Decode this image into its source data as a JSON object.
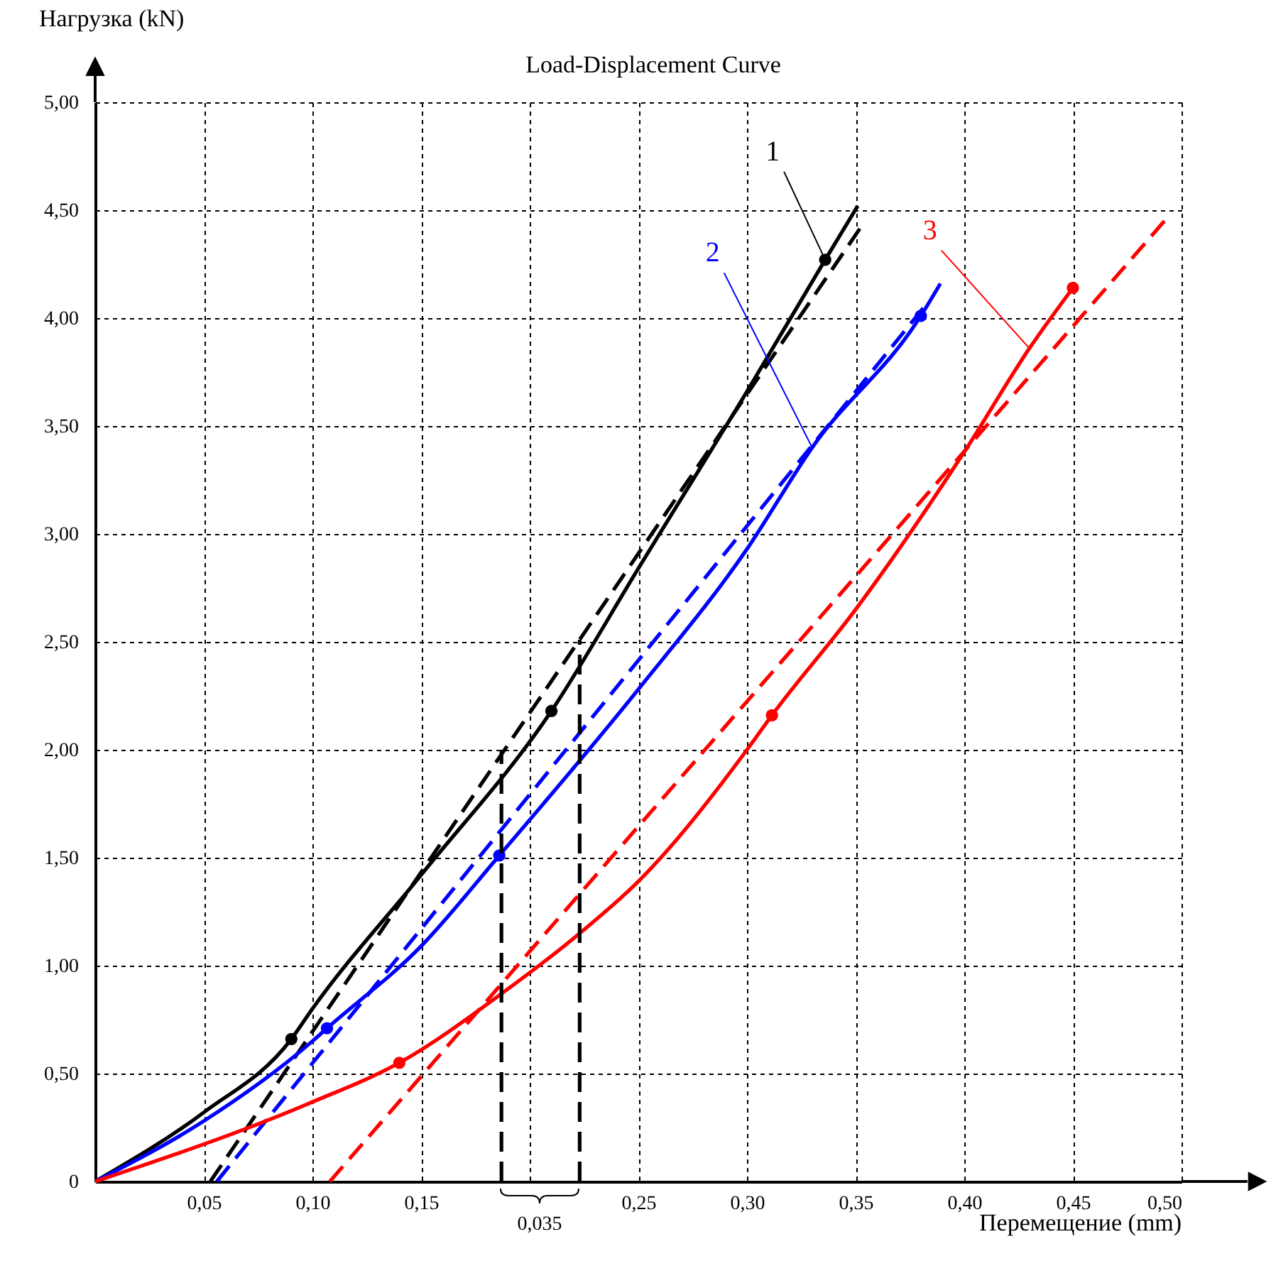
{
  "chart_data": {
    "type": "line",
    "title": "Load-Displacement Curve",
    "xlabel": "Перемещение (mm)",
    "ylabel": "Нагрузка (kN)",
    "xlim": [
      0,
      0.5
    ],
    "ylim": [
      0,
      5
    ],
    "xticks": [
      {
        "value": 0.05,
        "label": "0,05"
      },
      {
        "value": 0.1,
        "label": "0,10"
      },
      {
        "value": 0.15,
        "label": "0,15"
      },
      {
        "value": 0.2,
        "label": null
      },
      {
        "value": 0.25,
        "label": "0,25"
      },
      {
        "value": 0.3,
        "label": "0,30"
      },
      {
        "value": 0.35,
        "label": "0,35"
      },
      {
        "value": 0.4,
        "label": "0,40"
      },
      {
        "value": 0.45,
        "label": "0,45"
      },
      {
        "value": 0.5,
        "label": "0,50"
      }
    ],
    "yticks": [
      0,
      {
        "value": 0.5,
        "label": "0,50"
      },
      {
        "value": 1,
        "label": "1,00"
      },
      {
        "value": 1.5,
        "label": "1,50"
      },
      {
        "value": 2,
        "label": "2,00"
      },
      {
        "value": 2.5,
        "label": "2,50"
      },
      {
        "value": 3,
        "label": "3,00"
      },
      {
        "value": 3.5,
        "label": "3,50"
      },
      {
        "value": 4,
        "label": "4,00"
      },
      {
        "value": 4.5,
        "label": "4,50"
      },
      {
        "value": 5,
        "label": "5,00"
      }
    ],
    "grid": true,
    "annotations": [
      "0,035"
    ],
    "series": [
      {
        "name": "1",
        "color": "#000000",
        "line_style": "solid",
        "x": [
          0,
          0.05,
          0.0903,
          0.1,
          0.15,
          0.21,
          0.25,
          0.3,
          0.336,
          0.351
        ],
        "values": [
          0,
          0.32,
          0.66,
          0.8,
          1.42,
          2.18,
          2.84,
          3.66,
          4.27,
          4.52
        ]
      },
      {
        "color": "#000000",
        "type": "line",
        "line_style": "dashed",
        "x": [
          0.053,
          0.353
        ],
        "values": [
          0,
          4.43
        ]
      },
      {
        "name": "2",
        "color": "#0000ff",
        "line_style": "solid",
        "x": [
          0,
          0.05,
          0.1,
          0.1067,
          0.15,
          0.186,
          0.25,
          0.3,
          0.33,
          0.38,
          0.389
        ],
        "values": [
          0,
          0.28,
          0.65,
          0.71,
          1.09,
          1.51,
          2.28,
          2.93,
          3.4,
          4.01,
          4.16
        ]
      },
      {
        "color": "#0000ff",
        "type": "line",
        "line_style": "dashed",
        "x": [
          0.056,
          0.383
        ],
        "values": [
          0,
          4.07
        ]
      },
      {
        "name": "3",
        "color": "#ff0000",
        "line_style": "solid",
        "x": [
          0,
          0.098,
          0.14,
          0.187,
          0.223,
          0.25,
          0.3,
          0.3115,
          0.35,
          0.4,
          0.43,
          0.45
        ],
        "values": [
          0,
          0.36,
          0.55,
          0.87,
          1.15,
          1.39,
          2.0,
          2.16,
          2.65,
          3.38,
          3.86,
          4.14
        ]
      },
      {
        "color": "#ff0000",
        "type": "line",
        "line_style": "dashed",
        "x": [
          0.108,
          0.493
        ],
        "values": [
          0,
          4.46
        ]
      },
      {
        "color": "#000000",
        "type": "scatter",
        "marker": "circle",
        "x": [
          0.0903,
          0.21,
          0.336
        ],
        "values": [
          0.66,
          2.18,
          4.27
        ]
      },
      {
        "color": "#0000ff",
        "type": "scatter",
        "marker": "circle",
        "x": [
          0.1067,
          0.186,
          0.38
        ],
        "values": [
          0.71,
          1.51,
          4.01
        ]
      },
      {
        "color": "#ff0000",
        "type": "scatter",
        "marker": "circle",
        "x": [
          0.14,
          0.3115,
          0.45
        ],
        "values": [
          0.55,
          2.16,
          4.14
        ]
      },
      {
        "color": "#000000",
        "type": "line",
        "line_style": "dashed",
        "x": [
          0.187,
          0.187
        ],
        "values": [
          0,
          2.0
        ]
      },
      {
        "color": "#000000",
        "type": "line",
        "line_style": "dashed",
        "x": [
          0.223,
          0.223
        ],
        "values": [
          0,
          2.51
        ]
      }
    ]
  }
}
